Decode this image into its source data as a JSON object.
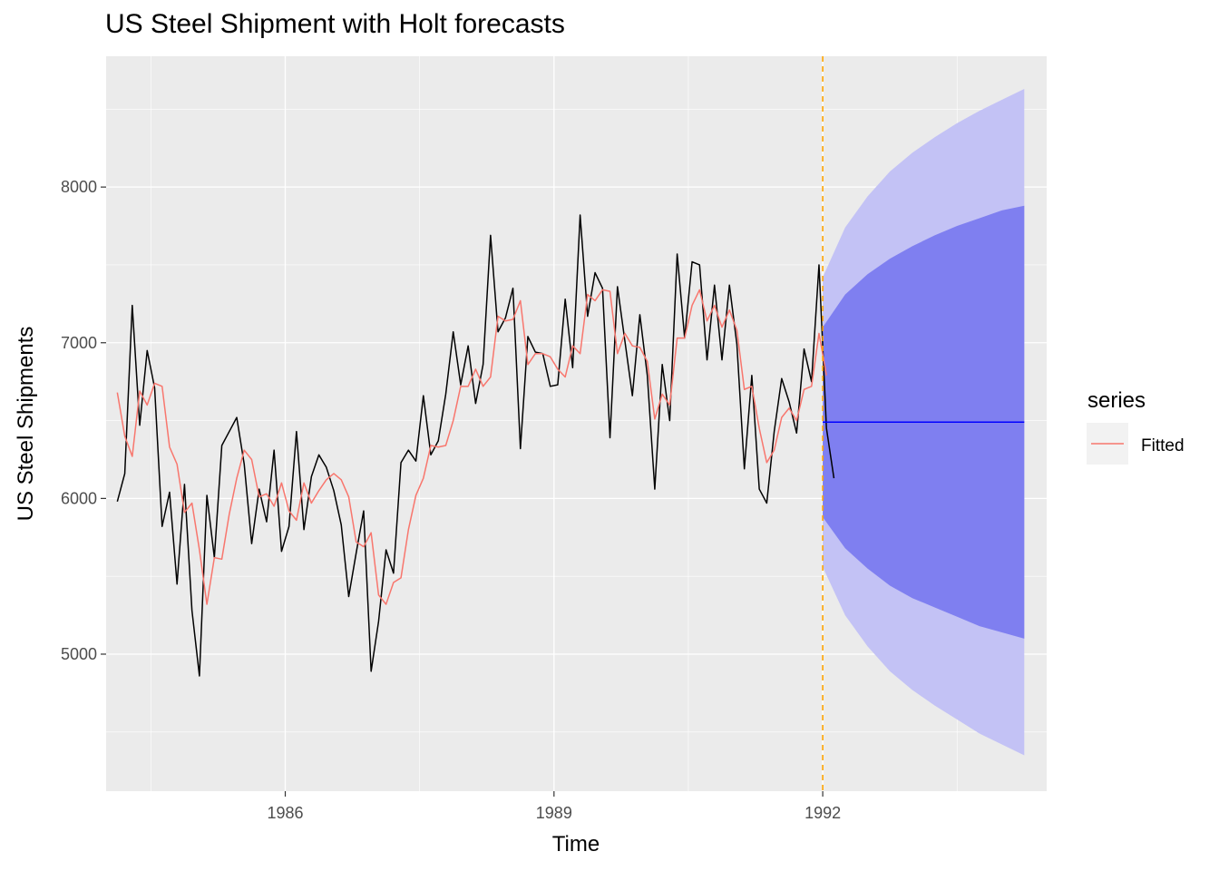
{
  "chart_data": {
    "type": "line",
    "title": "US Steel Shipment with Holt forecasts",
    "xlabel": "Time",
    "ylabel": "US Steel Shipments",
    "xlim": [
      1984.0,
      1994.5
    ],
    "ylim": [
      4120,
      8840
    ],
    "x_ticks": [
      1986,
      1989,
      1992
    ],
    "y_ticks": [
      5000,
      6000,
      7000,
      8000
    ],
    "grid": true,
    "legend": {
      "title": "series",
      "position": "right",
      "entries": [
        {
          "label": "Fitted",
          "color": "#f8766d"
        }
      ]
    },
    "forecast_start_line": {
      "x": 1992.0,
      "color": "#ffa500",
      "style": "dashed"
    },
    "series": [
      {
        "role": "observed",
        "color": "#000000",
        "x_start": 1984.125,
        "frequency": 12,
        "values": [
          5980,
          6160,
          7240,
          6470,
          6950,
          6710,
          5820,
          6040,
          5450,
          6090,
          5280,
          4860,
          6020,
          5620,
          6340,
          6430,
          6520,
          6220,
          5710,
          6060,
          5850,
          6310,
          5660,
          5820,
          6430,
          5800,
          6140,
          6280,
          6200,
          6050,
          5830,
          5370,
          5650,
          5920,
          4890,
          5210,
          5670,
          5520,
          6230,
          6310,
          6240,
          6660,
          6280,
          6370,
          6670,
          7070,
          6730,
          6980,
          6610,
          6860,
          7690,
          7070,
          7160,
          7350,
          6320,
          7040,
          6940,
          6930,
          6720,
          6730,
          7280,
          6840,
          7820,
          7170,
          7450,
          7350,
          6390,
          7360,
          7010,
          6660,
          7180,
          6790,
          6060,
          6860,
          6500,
          7570,
          7030,
          7520,
          7500,
          6890,
          7370,
          6890,
          7370,
          6990,
          6190,
          6790,
          6060,
          5970,
          6430,
          6770,
          6620,
          6420,
          6960,
          6750,
          7500,
          6450,
          6130
        ]
      },
      {
        "name": "Fitted",
        "color": "#f8766d",
        "x_start": 1984.125,
        "frequency": 12,
        "values": [
          6680,
          6400,
          6270,
          6690,
          6600,
          6740,
          6720,
          6330,
          6220,
          5910,
          5970,
          5670,
          5320,
          5620,
          5610,
          5900,
          6130,
          6310,
          6250,
          6010,
          6030,
          5950,
          6100,
          5920,
          5860,
          6100,
          5970,
          6050,
          6120,
          6160,
          6120,
          6010,
          5720,
          5690,
          5780,
          5380,
          5320,
          5460,
          5490,
          5800,
          6020,
          6130,
          6340,
          6330,
          6340,
          6500,
          6720,
          6720,
          6830,
          6720,
          6780,
          7170,
          7140,
          7150,
          7270,
          6860,
          6930,
          6930,
          6910,
          6830,
          6780,
          6980,
          6930,
          7310,
          7270,
          7340,
          7330,
          6930,
          7060,
          6980,
          6970,
          6880,
          6510,
          6670,
          6600,
          7030,
          7030,
          7240,
          7340,
          7140,
          7240,
          7100,
          7210,
          7080,
          6700,
          6720,
          6450,
          6230,
          6310,
          6520,
          6580,
          6500,
          6700,
          6720,
          7060,
          6790
        ]
      },
      {
        "name": "Point forecast",
        "color": "#0000ff",
        "x": [
          1992.0,
          1994.25
        ],
        "values": [
          6490,
          6490
        ]
      }
    ],
    "prediction_intervals": [
      {
        "level": 95,
        "color": "#c3c2f5",
        "x": [
          1992.0,
          1992.25,
          1992.5,
          1992.75,
          1993.0,
          1993.25,
          1993.5,
          1993.75,
          1994.0,
          1994.25
        ],
        "lower": [
          5560,
          5250,
          5050,
          4890,
          4770,
          4670,
          4580,
          4490,
          4420,
          4350
        ],
        "upper": [
          7420,
          7740,
          7940,
          8100,
          8220,
          8320,
          8410,
          8490,
          8560,
          8630
        ]
      },
      {
        "level": 80,
        "color": "#7f7ff0",
        "x": [
          1992.0,
          1992.25,
          1992.5,
          1992.75,
          1993.0,
          1993.25,
          1993.5,
          1993.75,
          1994.0,
          1994.25
        ],
        "lower": [
          5880,
          5680,
          5550,
          5440,
          5360,
          5300,
          5240,
          5180,
          5140,
          5100
        ],
        "upper": [
          7100,
          7310,
          7440,
          7540,
          7620,
          7690,
          7750,
          7800,
          7850,
          7880
        ]
      }
    ]
  }
}
